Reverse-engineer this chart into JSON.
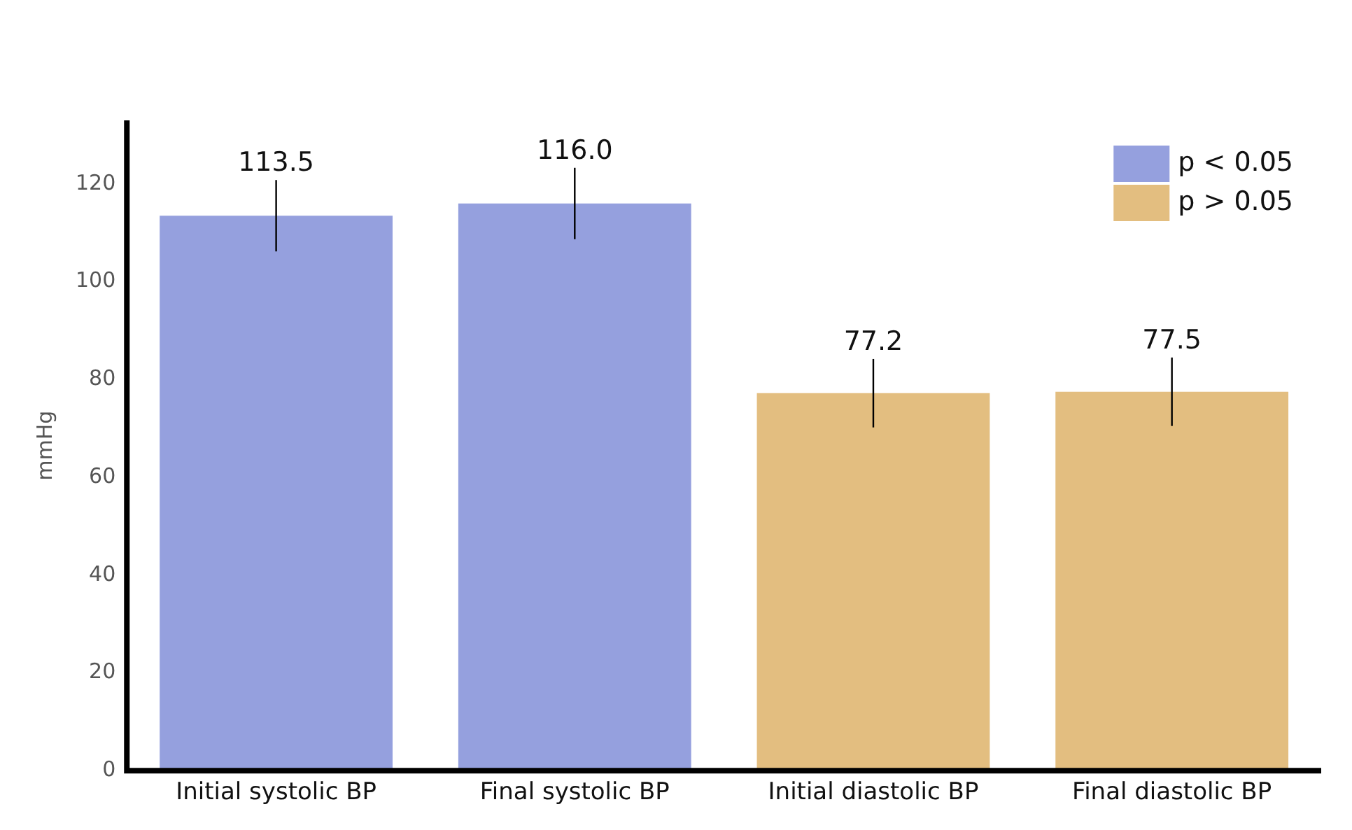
{
  "chart_data": {
    "type": "bar",
    "ylabel": "mmHg",
    "categories": [
      "Initial systolic BP",
      "Final systolic BP",
      "Initial diastolic BP",
      "Final diastolic BP"
    ],
    "series": [
      {
        "name": "p < 0.05",
        "color": "#95a0de",
        "values": [
          113.5,
          116.0,
          null,
          null
        ],
        "value_labels": [
          "113.5",
          "116.0",
          null,
          null
        ],
        "errors": [
          7.3,
          7.3,
          null,
          null
        ]
      },
      {
        "name": "p > 0.05",
        "color": "#e3be80",
        "values": [
          null,
          null,
          77.2,
          77.5
        ],
        "value_labels": [
          null,
          null,
          "77.2",
          "77.5"
        ],
        "errors": [
          null,
          null,
          7,
          7
        ]
      }
    ],
    "stacked": true,
    "ylim": [
      0,
      133
    ],
    "yticks": [
      0,
      20,
      40,
      60,
      80,
      100,
      120
    ],
    "grid": false,
    "legend": "top right"
  }
}
